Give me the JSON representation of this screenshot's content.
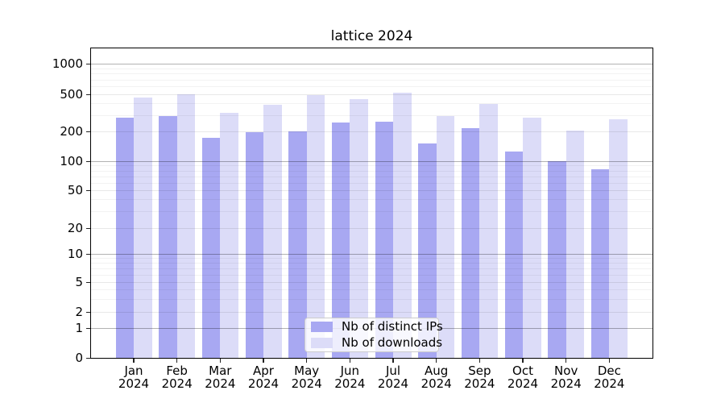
{
  "chart_data": {
    "type": "bar",
    "title": "lattice 2024",
    "categories": [
      "Jan 2024",
      "Feb 2024",
      "Mar 2024",
      "Apr 2024",
      "May 2024",
      "Jun 2024",
      "Jul 2024",
      "Aug 2024",
      "Sep 2024",
      "Oct 2024",
      "Nov 2024",
      "Dec 2024"
    ],
    "series": [
      {
        "name": "Nb of distinct IPs",
        "color": "#a8a8f2",
        "values": [
          280,
          292,
          172,
          195,
          200,
          248,
          252,
          150,
          215,
          125,
          100,
          83
        ]
      },
      {
        "name": "Nb of downloads",
        "color": "#dcdcf8",
        "values": [
          460,
          503,
          315,
          385,
          490,
          445,
          520,
          295,
          390,
          278,
          205,
          270
        ]
      }
    ],
    "yscale": "log",
    "yticks": [
      0,
      1,
      2,
      5,
      10,
      20,
      50,
      100,
      200,
      500,
      1000
    ],
    "ylim": [
      0,
      1450
    ],
    "xlabel": "",
    "ylabel": "",
    "grid": true,
    "legend_position": "lower center",
    "colors": {
      "background": "#ffffff",
      "grid_power_of_ten": "#b3b3b3",
      "grid_minor": "#f2f2f2",
      "axis": "#000000"
    }
  }
}
